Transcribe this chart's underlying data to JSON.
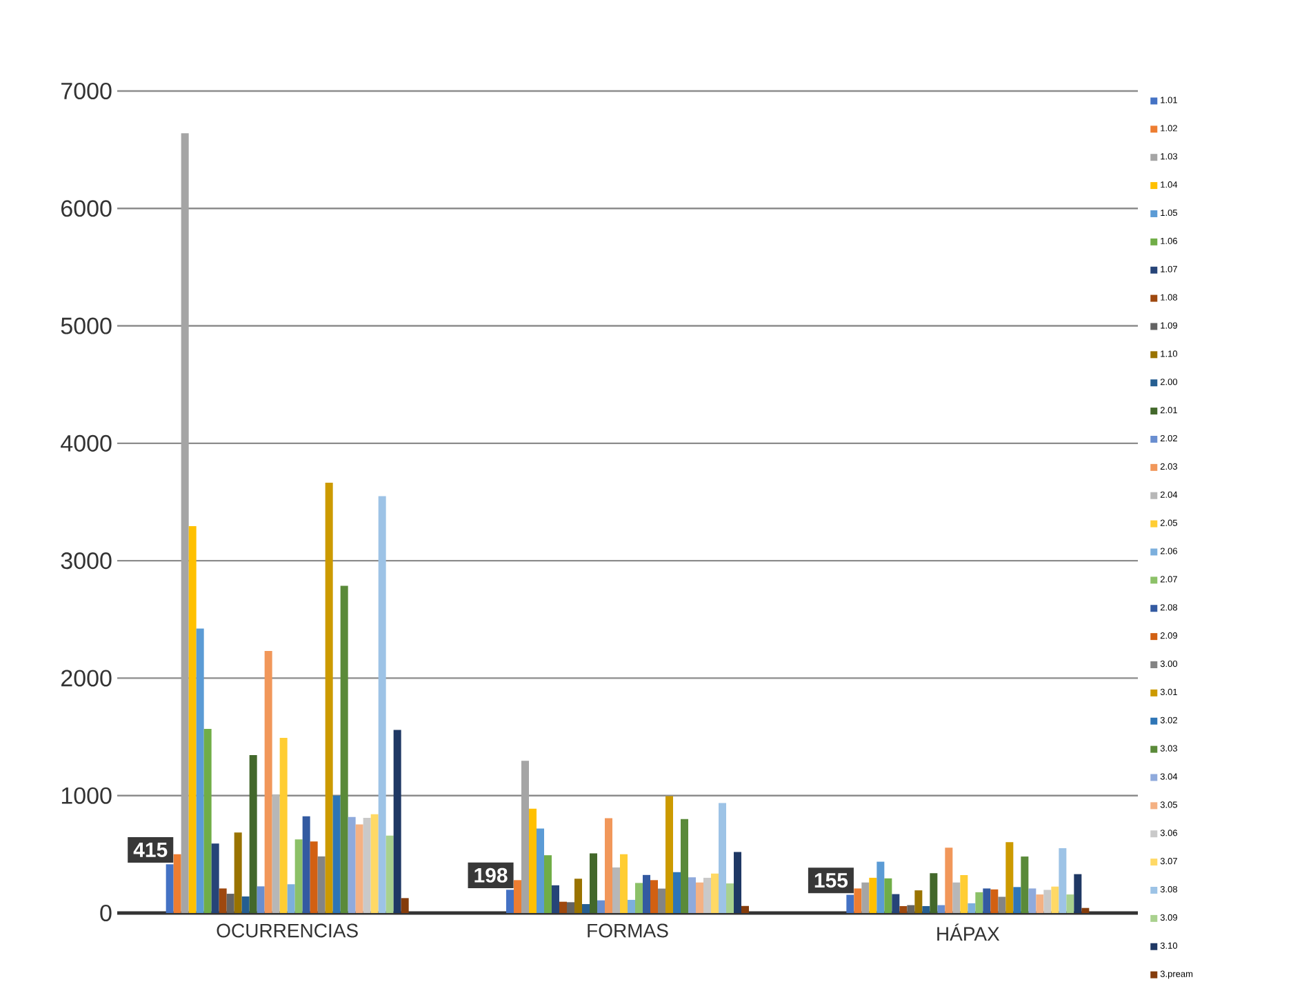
{
  "chart_data": {
    "type": "bar",
    "categories": [
      "OCURRENCIAS",
      "FORMAS",
      "HÁPAX"
    ],
    "ylim": [
      0,
      7000
    ],
    "yticks": [
      0,
      1000,
      2000,
      3000,
      4000,
      5000,
      6000,
      7000
    ],
    "grid": "y",
    "legend": "right",
    "series": [
      {
        "name": "1.01",
        "color": "#4472c4",
        "values": [
          415,
          198,
          155
        ],
        "value_labels": [
          "415",
          "198",
          "155"
        ]
      },
      {
        "name": "1.02",
        "color": "#ed7d31",
        "values": [
          500,
          280,
          209
        ]
      },
      {
        "name": "1.03",
        "color": "#a5a5a5",
        "values": [
          6640,
          1296,
          260
        ]
      },
      {
        "name": "1.04",
        "color": "#ffc000",
        "values": [
          3295,
          888,
          300
        ]
      },
      {
        "name": "1.05",
        "color": "#5b9bd5",
        "values": [
          2423,
          720,
          437
        ]
      },
      {
        "name": "1.06",
        "color": "#70ad47",
        "values": [
          1568,
          492,
          295
        ]
      },
      {
        "name": "1.07",
        "color": "#264478",
        "values": [
          591,
          236,
          161
        ]
      },
      {
        "name": "1.08",
        "color": "#9e480e",
        "values": [
          209,
          96,
          59
        ]
      },
      {
        "name": "1.09",
        "color": "#636363",
        "values": [
          164,
          92,
          67
        ]
      },
      {
        "name": "1.10",
        "color": "#997300",
        "values": [
          686,
          292,
          193
        ]
      },
      {
        "name": "2.00",
        "color": "#255e91",
        "values": [
          141,
          76,
          59
        ]
      },
      {
        "name": "2.01",
        "color": "#43682b",
        "values": [
          1345,
          508,
          339
        ]
      },
      {
        "name": "2.02",
        "color": "#698ed0",
        "values": [
          227,
          108,
          67
        ]
      },
      {
        "name": "2.03",
        "color": "#f1975a",
        "values": [
          2232,
          808,
          556
        ]
      },
      {
        "name": "2.04",
        "color": "#b7b7b7",
        "values": [
          1010,
          388,
          260
        ]
      },
      {
        "name": "2.05",
        "color": "#ffcd33",
        "values": [
          1491,
          500,
          323
        ]
      },
      {
        "name": "2.06",
        "color": "#7cafdd",
        "values": [
          245,
          112,
          83
        ]
      },
      {
        "name": "2.07",
        "color": "#8cc168",
        "values": [
          627,
          256,
          177
        ]
      },
      {
        "name": "2.08",
        "color": "#335aa1",
        "values": [
          823,
          324,
          209
        ]
      },
      {
        "name": "2.09",
        "color": "#d26012",
        "values": [
          609,
          280,
          201
        ]
      },
      {
        "name": "3.00",
        "color": "#848484",
        "values": [
          482,
          208,
          138
        ]
      },
      {
        "name": "3.01",
        "color": "#cc9a00",
        "values": [
          3664,
          996,
          603
        ]
      },
      {
        "name": "3.02",
        "color": "#2e75b6",
        "values": [
          1000,
          348,
          221
        ]
      },
      {
        "name": "3.03",
        "color": "#5a8a39",
        "values": [
          2786,
          800,
          481
        ]
      },
      {
        "name": "3.04",
        "color": "#8faadc",
        "values": [
          818,
          304,
          209
        ]
      },
      {
        "name": "3.05",
        "color": "#f4b183",
        "values": [
          755,
          260,
          158
        ]
      },
      {
        "name": "3.06",
        "color": "#c9c9c9",
        "values": [
          810,
          300,
          197
        ]
      },
      {
        "name": "3.07",
        "color": "#ffd966",
        "values": [
          841,
          336,
          225
        ]
      },
      {
        "name": "3.08",
        "color": "#9dc3e6",
        "values": [
          3550,
          936,
          552
        ]
      },
      {
        "name": "3.09",
        "color": "#a9d18e",
        "values": [
          659,
          252,
          158
        ]
      },
      {
        "name": "3.10",
        "color": "#1f3864",
        "values": [
          1559,
          520,
          331
        ]
      },
      {
        "name": "3.pream",
        "color": "#843c0c",
        "values": [
          127,
          60,
          43
        ]
      }
    ]
  }
}
